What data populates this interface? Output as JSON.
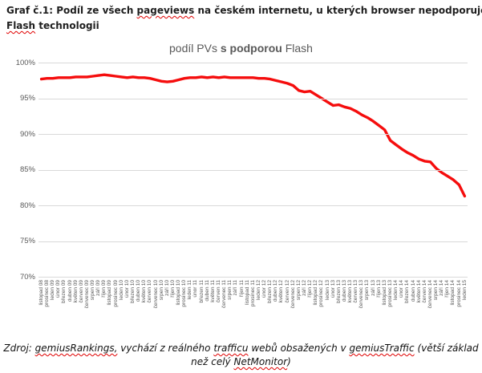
{
  "header": {
    "seg1": "Graf č.1: Podíl ze všech ",
    "misspelled1": "pageviews",
    "seg2": " na českém internetu, u kterých browser nepodporuje",
    "misspelled2": "Flash",
    "seg3": " technologii"
  },
  "chart_title": {
    "seg1": "podíl PVs ",
    "seg2_bold": "s podporou",
    "seg3": " Flash"
  },
  "footer": {
    "seg1": "Zdroj: ",
    "misspelled1": "gemiusRankings,",
    "seg2": " vychází z reálného ",
    "misspelled2": "trafficu",
    "seg3": " webů obsažených v ",
    "misspelled3": "gemiusTraffic",
    "seg4": " (větší základ",
    "line2_seg1": "než celý ",
    "misspelled4": "NetMonitor",
    "line2_seg2": ")"
  },
  "colors": {
    "line": "#f50d0d",
    "gridline": "#d9d9d9",
    "axis_label": "#595959",
    "title_gray": "#595959",
    "squiggle": "#e00000"
  },
  "chart_data": {
    "type": "line",
    "title": "podíl PVs s podporou Flash",
    "xlabel": "",
    "ylabel": "",
    "ylim": [
      70,
      100
    ],
    "grid": "horizontal",
    "legend": "none",
    "yticks": [
      "100%",
      "95%",
      "90%",
      "85%",
      "80%",
      "75%",
      "70%"
    ],
    "ytick_values": [
      100,
      95,
      90,
      85,
      80,
      75,
      70
    ],
    "categories": [
      "listopad 08",
      "prosinec 08",
      "leden 09",
      "únor 09",
      "březen 09",
      "duben 09",
      "květen 09",
      "červen 09",
      "červenec 09",
      "srpen 09",
      "září 09",
      "říjen 09",
      "listopad 09",
      "prosinec 09",
      "leden 10",
      "únor 10",
      "březen 10",
      "duben 10",
      "květen 10",
      "červen 10",
      "červenec 10",
      "srpen 10",
      "září 10",
      "říjen 10",
      "listopad 10",
      "prosinec 10",
      "leden 11",
      "únor 11",
      "březen 11",
      "duben 11",
      "květen 11",
      "červen 11",
      "červenec 11",
      "srpen 11",
      "září 11",
      "říjen 11",
      "listopad 11",
      "prosinec 11",
      "leden 12",
      "únor 12",
      "březen 12",
      "duben 12",
      "květen 12",
      "červen 12",
      "červenec 12",
      "srpen 12",
      "září 12",
      "říjen 12",
      "listopad 12",
      "prosinec 12",
      "leden 13",
      "únor 13",
      "březen 13",
      "duben 13",
      "květen 13",
      "červen 13",
      "červenec 13",
      "srpen 13",
      "září 13",
      "říjen 13",
      "listopad 13",
      "prosinec 13",
      "leden 14",
      "únor 14",
      "březen 14",
      "duben 14",
      "květen 14",
      "červen 14",
      "červenec 14",
      "srpen 14",
      "září 14",
      "říjen 14",
      "listopad 14",
      "prosinec 14",
      "leden 15"
    ],
    "series": [
      {
        "name": "podíl PVs s podporou Flash",
        "color": "#f50d0d",
        "values": [
          97.8,
          97.9,
          97.9,
          98.0,
          98.0,
          98.0,
          98.1,
          98.1,
          98.1,
          98.2,
          98.3,
          98.4,
          98.3,
          98.2,
          98.1,
          98.0,
          98.1,
          98.0,
          98.0,
          97.9,
          97.7,
          97.5,
          97.4,
          97.5,
          97.7,
          97.9,
          98.0,
          98.0,
          98.1,
          98.0,
          98.1,
          98.0,
          98.1,
          98.0,
          98.0,
          98.0,
          98.0,
          98.0,
          97.9,
          97.9,
          97.8,
          97.6,
          97.4,
          97.2,
          96.9,
          96.2,
          96.0,
          96.1,
          95.6,
          95.1,
          94.6,
          94.1,
          94.2,
          93.9,
          93.7,
          93.3,
          92.8,
          92.4,
          91.9,
          91.3,
          90.7,
          89.2,
          88.6,
          88.0,
          87.5,
          87.1,
          86.6,
          86.3,
          86.2,
          85.3,
          84.7,
          84.2,
          83.7,
          83.0,
          81.4
        ]
      }
    ]
  }
}
